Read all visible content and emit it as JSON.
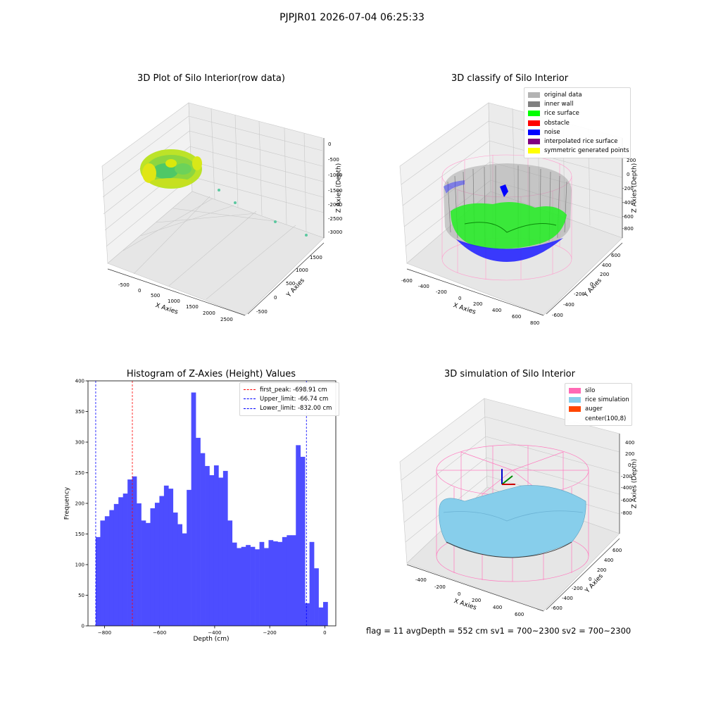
{
  "figure": {
    "suptitle": "PJPJR01 2026-07-04 06:25:33",
    "footer": "flag = 11  avgDepth = 552 cm  sv1 = 700~2300  sv2 = 700~2300"
  },
  "panels": {
    "raw": {
      "title": "3D Plot of Silo Interior(row data)",
      "xlabel": "X Axies",
      "ylabel": "Y Axies",
      "zlabel": "Z Axies (Depth)",
      "xticks": [
        "-500",
        "0",
        "500",
        "1000",
        "1500",
        "2000",
        "2500"
      ],
      "yticks": [
        "-500",
        "0",
        "500",
        "1000",
        "1500"
      ],
      "zticks": [
        "0",
        "-500",
        "-1000",
        "-1500",
        "-2000",
        "-2500",
        "-3000"
      ]
    },
    "classify": {
      "title": "3D classify of Silo Interior",
      "xlabel": "X Axies",
      "ylabel": "Y Axies",
      "zlabel": "Z Axies (Depth)",
      "xticks": [
        "-600",
        "-400",
        "-200",
        "0",
        "200",
        "400",
        "600",
        "800"
      ],
      "yticks": [
        "-600",
        "-400",
        "-200",
        "0",
        "200",
        "400",
        "600"
      ],
      "zticks": [
        "200",
        "0",
        "-200",
        "-400",
        "-600",
        "-800"
      ],
      "legend": [
        {
          "label": "original data",
          "color": "#b3b3b3"
        },
        {
          "label": "inner wall",
          "color": "#808080"
        },
        {
          "label": "rice surface",
          "color": "#00ff00"
        },
        {
          "label": "obstacle",
          "color": "#ff0000"
        },
        {
          "label": "noise",
          "color": "#0000ff"
        },
        {
          "label": "interpolated rice surface",
          "color": "#800080"
        },
        {
          "label": "symmetric generated points",
          "color": "#ffff00"
        }
      ]
    },
    "simulation": {
      "title": "3D simulation of Silo Interior",
      "xlabel": "X Axies",
      "ylabel": "Y Axies",
      "zlabel": "Z Axies (Depth)",
      "xticks": [
        "-400",
        "-200",
        "0",
        "200",
        "400",
        "600"
      ],
      "yticks": [
        "-600",
        "-400",
        "-200",
        "0",
        "200",
        "400",
        "600"
      ],
      "zticks": [
        "400",
        "200",
        "0",
        "-200",
        "-400",
        "-600",
        "-800"
      ],
      "legend": [
        {
          "label": "silo",
          "color": "#ff69b4"
        },
        {
          "label": "rice simulation",
          "color": "#87ceeb"
        },
        {
          "label": "auger",
          "color": "#ff4500"
        },
        {
          "label": "center(100,8)",
          "color": "#ffffff"
        }
      ]
    }
  },
  "chart_data": {
    "type": "bar",
    "title": "Histogram of Z-Axies (Height) Values",
    "xlabel": "Depth (cm)",
    "ylabel": "Frequency",
    "xlim": [
      -860,
      40
    ],
    "ylim": [
      0,
      400
    ],
    "xticks": [
      -800,
      -600,
      -400,
      -200,
      0
    ],
    "yticks": [
      0,
      50,
      100,
      150,
      200,
      250,
      300,
      350,
      400
    ],
    "bar_color": "#4d4dff",
    "bin_width": 16.52,
    "bins_start": -832.0,
    "values": [
      145,
      172,
      179,
      189,
      199,
      210,
      216,
      239,
      244,
      200,
      172,
      168,
      192,
      201,
      212,
      229,
      224,
      185,
      166,
      151,
      222,
      381,
      307,
      282,
      261,
      246,
      262,
      242,
      253,
      172,
      136,
      127,
      129,
      132,
      129,
      125,
      137,
      127,
      140,
      138,
      137,
      145,
      148,
      148,
      295,
      276,
      37,
      137,
      94,
      30,
      39
    ],
    "vlines": [
      {
        "label": "first_peak: -698.91 cm",
        "x": -698.91,
        "color": "#ff0000"
      },
      {
        "label": "Upper_limit: -66.74 cm",
        "x": -66.74,
        "color": "#0000ff"
      },
      {
        "label": "Lower_limit: -832.00 cm",
        "x": -832.0,
        "color": "#0000ff"
      }
    ],
    "legend_position": "upper right"
  }
}
